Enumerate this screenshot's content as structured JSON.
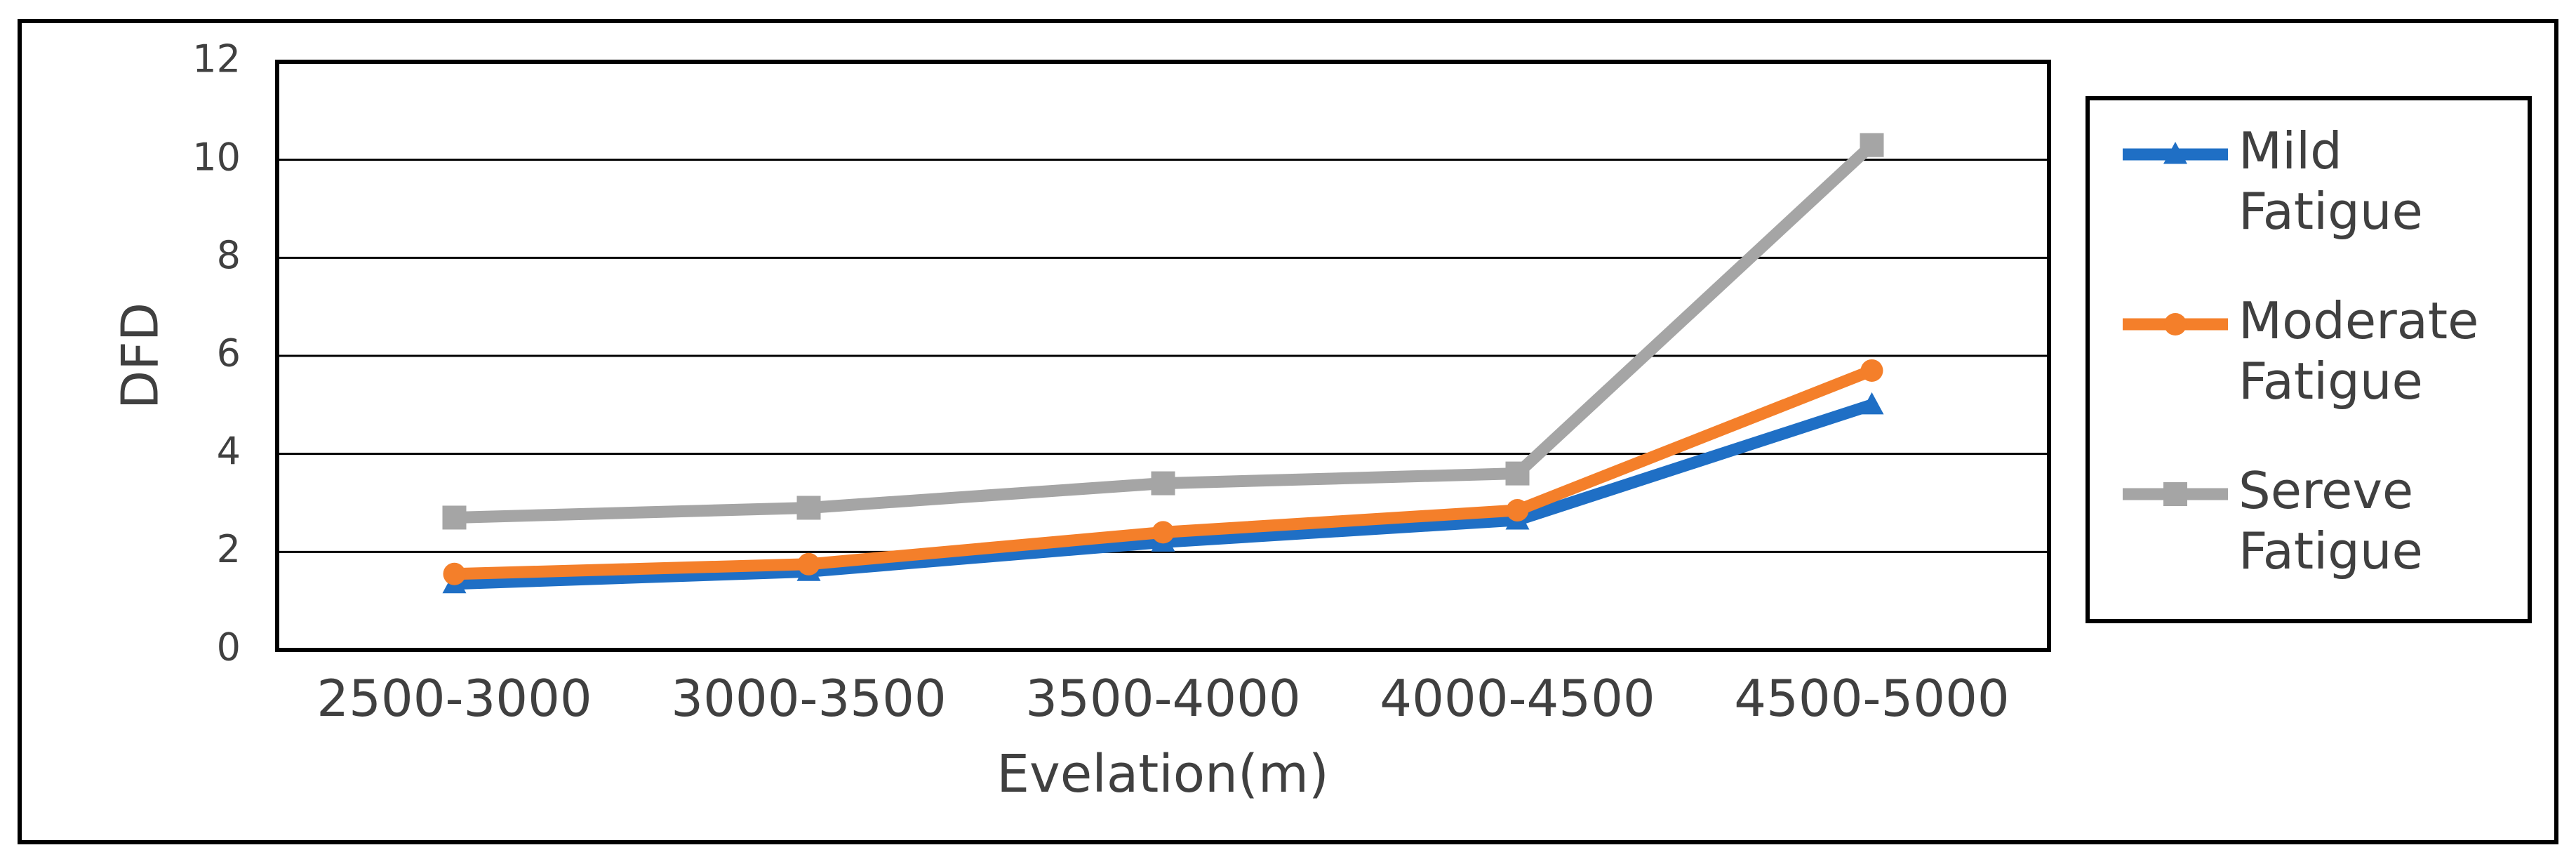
{
  "chart_data": {
    "type": "line",
    "title": "",
    "xlabel": "Evelation(m)",
    "ylabel": "DFD",
    "categories": [
      "2500-3000",
      "3000-3500",
      "3500-4000",
      "4000-4500",
      "4500-5000"
    ],
    "ylim": [
      0,
      12
    ],
    "yticks": [
      0,
      2,
      4,
      6,
      8,
      10,
      12
    ],
    "grid": true,
    "legend_position": "right",
    "series": [
      {
        "name": "Mild Fatigue",
        "legend_lines": [
          "Mild",
          "Fatigue"
        ],
        "color": "#1F6FC5",
        "marker": "triangle",
        "values": [
          1.35,
          1.6,
          2.2,
          2.65,
          5.0
        ]
      },
      {
        "name": "Moderate Fatigue",
        "legend_lines": [
          "Moderate",
          "Fatigue"
        ],
        "color": "#F47F2A",
        "marker": "circle",
        "values": [
          1.55,
          1.75,
          2.4,
          2.85,
          5.7
        ]
      },
      {
        "name": "Sereve Fatigue",
        "legend_lines": [
          "Sereve",
          "Fatigue"
        ],
        "color": "#A5A5A5",
        "marker": "square",
        "values": [
          2.7,
          2.9,
          3.4,
          3.6,
          10.3
        ]
      }
    ]
  }
}
